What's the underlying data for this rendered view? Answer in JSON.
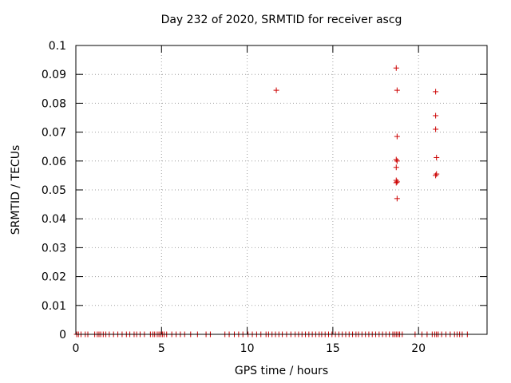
{
  "chart_data": {
    "type": "scatter",
    "title": "Day 232 of 2020, SRMTID for receiver ascg",
    "xlabel": "GPS time / hours",
    "ylabel": "SRMTID / TECUs",
    "xlim": [
      0,
      24
    ],
    "ylim": [
      0,
      0.1
    ],
    "xticks": [
      0,
      5,
      10,
      15,
      20
    ],
    "yticks": [
      0,
      0.01,
      0.02,
      0.03,
      0.04,
      0.05,
      0.06,
      0.07,
      0.08,
      0.09,
      0.1
    ],
    "ytick_labels": [
      "0",
      "0.01",
      "0.02",
      "0.03",
      "0.04",
      "0.05",
      "0.06",
      "0.07",
      "0.08",
      "0.09",
      "0.1"
    ],
    "xtick_labels": [
      "0",
      "5",
      "10",
      "15",
      "20"
    ],
    "grid": true,
    "marker": "+",
    "color": "#cc0000",
    "series": [
      {
        "name": "SRMTID",
        "points": [
          [
            11.7,
            0.0845
          ],
          [
            18.7,
            0.0922
          ],
          [
            18.75,
            0.0845
          ],
          [
            18.75,
            0.0685
          ],
          [
            18.7,
            0.0605
          ],
          [
            18.75,
            0.06
          ],
          [
            18.7,
            0.0578
          ],
          [
            18.7,
            0.0533
          ],
          [
            18.75,
            0.0528
          ],
          [
            18.7,
            0.0525
          ],
          [
            18.75,
            0.047
          ],
          [
            21.0,
            0.084
          ],
          [
            21.0,
            0.0757
          ],
          [
            21.0,
            0.071
          ],
          [
            21.05,
            0.0612
          ],
          [
            21.05,
            0.0555
          ],
          [
            21.0,
            0.055
          ]
        ],
        "zero_x": [
          0.05,
          0.15,
          0.3,
          0.55,
          0.7,
          1.1,
          1.25,
          1.35,
          1.45,
          1.6,
          1.75,
          1.95,
          2.2,
          2.45,
          2.7,
          2.95,
          3.15,
          3.4,
          3.55,
          3.75,
          4.0,
          4.35,
          4.5,
          4.6,
          4.75,
          4.85,
          4.95,
          5.05,
          5.15,
          5.3,
          5.6,
          5.85,
          6.1,
          6.35,
          6.7,
          7.1,
          7.6,
          7.85,
          8.7,
          8.95,
          9.25,
          9.5,
          9.75,
          10.05,
          10.3,
          10.55,
          10.8,
          11.1,
          11.25,
          11.45,
          11.65,
          11.85,
          12.05,
          12.3,
          12.55,
          12.8,
          13.0,
          13.2,
          13.4,
          13.6,
          13.8,
          14.0,
          14.2,
          14.35,
          14.55,
          14.75,
          14.95,
          15.15,
          15.35,
          15.55,
          15.75,
          15.95,
          16.15,
          16.35,
          16.5,
          16.7,
          16.9,
          17.1,
          17.3,
          17.5,
          17.7,
          17.9,
          18.1,
          18.3,
          18.5,
          18.6,
          18.7,
          18.8,
          18.9,
          19.05,
          19.8,
          20.2,
          20.5,
          20.8,
          20.95,
          21.05,
          21.15,
          21.35,
          21.6,
          21.85,
          22.1,
          22.25,
          22.4,
          22.55,
          22.85
        ]
      }
    ]
  }
}
